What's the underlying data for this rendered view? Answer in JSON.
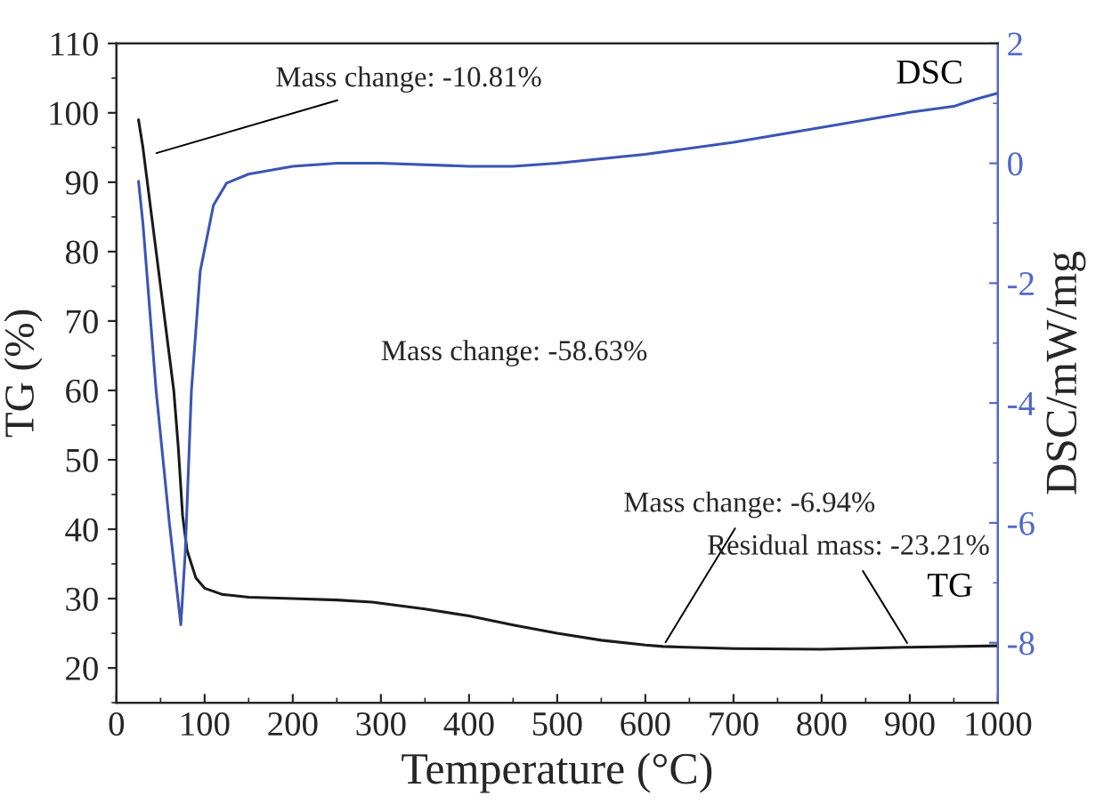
{
  "chart_data": {
    "type": "line",
    "xlabel": "Temperature (°C)",
    "ylabel": "TG (%)",
    "y2label": "DSC/mW/mg",
    "series": [
      {
        "name": "TG",
        "color": "#1a1a1a",
        "x": [
          25,
          30,
          40,
          50,
          60,
          65,
          70,
          75,
          80,
          90,
          100,
          120,
          150,
          200,
          250,
          290,
          350,
          400,
          450,
          500,
          550,
          600,
          620,
          700,
          800,
          900,
          1000
        ],
        "values": [
          99,
          95,
          85,
          75,
          65,
          60,
          52,
          42,
          37,
          33,
          31.5,
          30.6,
          30.2,
          30,
          29.8,
          29.5,
          28.5,
          27.5,
          26.2,
          25,
          24,
          23.3,
          23.1,
          22.8,
          22.7,
          23,
          23.2
        ]
      },
      {
        "name": "DSC",
        "color": "#3b55b5",
        "axis": "y2",
        "x": [
          25,
          30,
          45,
          60,
          73,
          78,
          85,
          95,
          110,
          125,
          150,
          200,
          250,
          300,
          400,
          450,
          500,
          600,
          700,
          800,
          900,
          950,
          960,
          975,
          1000
        ],
        "values": [
          -0.3,
          -1,
          -3.8,
          -6,
          -7.7,
          -6.5,
          -3.8,
          -1.8,
          -0.7,
          -0.33,
          -0.18,
          -0.05,
          0,
          0,
          -0.05,
          -0.05,
          0,
          0.15,
          0.35,
          0.6,
          0.85,
          0.95,
          1.0,
          1.07,
          1.17
        ]
      }
    ],
    "xlim": [
      0,
      1000
    ],
    "xticks": [
      0,
      100,
      200,
      300,
      400,
      500,
      600,
      700,
      800,
      900,
      1000
    ],
    "ylim": [
      15,
      110
    ],
    "yticks": [
      20,
      30,
      40,
      50,
      60,
      70,
      80,
      90,
      100,
      110
    ],
    "y2lim": [
      -9,
      2
    ],
    "y2ticks": [
      -8,
      -6,
      -4,
      -2,
      0,
      2
    ],
    "annotations": [
      {
        "text": "Mass change: -10.81%",
        "x": 40,
        "y": 94
      },
      "Mass change: -58.63%",
      {
        "text": "Mass change: -6.94%",
        "x": 620,
        "y": 23.1
      },
      {
        "text": "Residual mass: -23.21%",
        "x": 900,
        "y": 23
      }
    ],
    "grid": false,
    "legend": false,
    "marker": "none",
    "line_style": "solid"
  }
}
